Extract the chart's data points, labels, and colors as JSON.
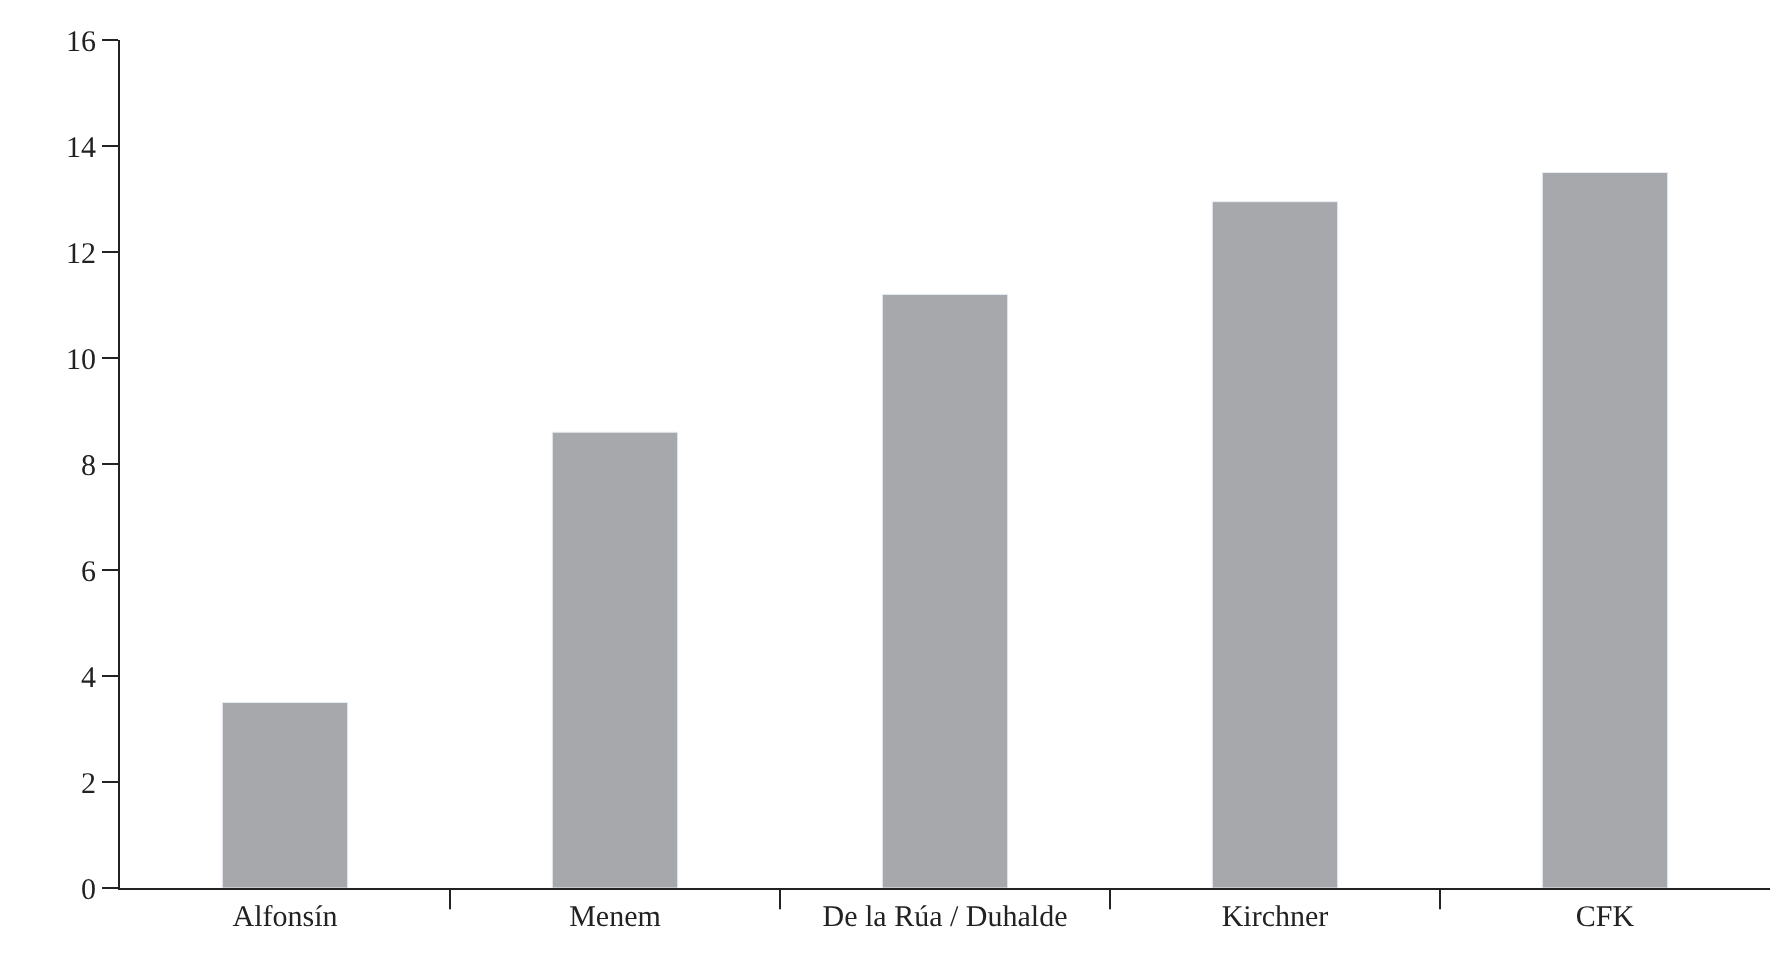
{
  "chart_data": {
    "type": "bar",
    "categories": [
      "Alfonsín",
      "Menem",
      "De la Rúa / Duhalde",
      "Kirchner",
      "CFK"
    ],
    "values": [
      3.5,
      8.6,
      11.2,
      12.95,
      13.5
    ],
    "color": "#a7a8ab",
    "ylim": [
      0,
      16
    ],
    "yticks": [
      0,
      2,
      4,
      6,
      8,
      10,
      12,
      14,
      16
    ],
    "legend": false
  }
}
